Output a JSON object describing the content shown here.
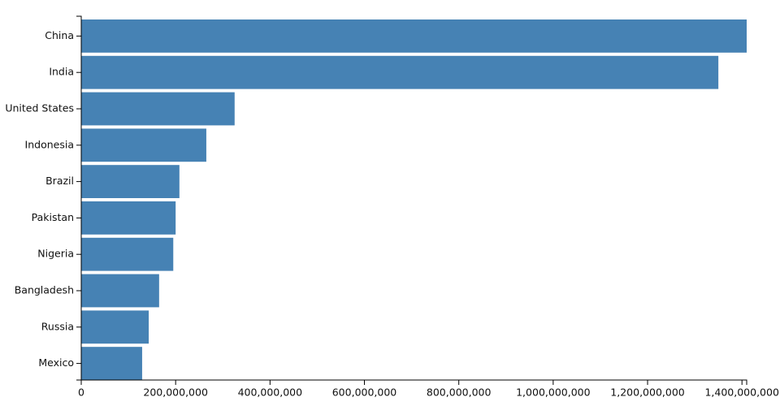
{
  "chart_data": {
    "type": "bar",
    "orientation": "horizontal",
    "categories": [
      "China",
      "India",
      "United States",
      "Indonesia",
      "Brazil",
      "Pakistan",
      "Nigeria",
      "Bangladesh",
      "Russia",
      "Mexico"
    ],
    "values": [
      1410000000,
      1350000000,
      325000000,
      265000000,
      208000000,
      200000000,
      195000000,
      165000000,
      143000000,
      129000000
    ],
    "color": "#4682b4",
    "xlim": [
      0,
      1410000000
    ],
    "xticks": [
      0,
      {
        "value": 200000000,
        "label": "200,000,000"
      },
      {
        "value": 400000000,
        "label": "400,000,000"
      },
      {
        "value": 600000000,
        "label": "600,000,000"
      },
      {
        "value": 800000000,
        "label": "800,000,000"
      },
      {
        "value": 1000000000,
        "label": "1,000,000,000"
      },
      {
        "value": 1200000000,
        "label": "1,200,000,000"
      },
      {
        "value": 1400000000,
        "label": "1,400,000,000"
      }
    ]
  }
}
